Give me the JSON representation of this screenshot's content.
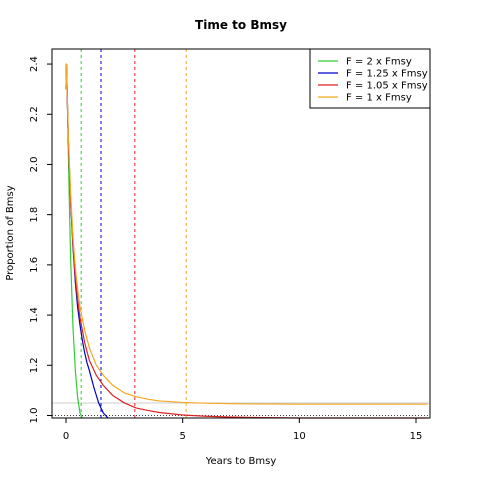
{
  "chart_data": {
    "type": "line",
    "title": "Time to Bmsy",
    "xlabel": "Years to Bmsy",
    "ylabel": "Proportion of Bmsy",
    "xlim": [
      -0.6,
      15.6
    ],
    "ylim": [
      0.99,
      2.46
    ],
    "x_ticks": [
      0,
      5,
      10,
      15
    ],
    "y_ticks": [
      1.0,
      1.2,
      1.4,
      1.6,
      1.8,
      2.0,
      2.2,
      2.4
    ],
    "x_tick_labels": [
      "0",
      "5",
      "10",
      "15"
    ],
    "y_tick_labels": [
      "1.0",
      "1.2",
      "1.4",
      "1.6",
      "1.8",
      "2.0",
      "2.2",
      "2.4"
    ],
    "legend_position": "top-right",
    "reference_lines": {
      "y_dotted": 1.0,
      "y_solid_light": 1.05
    },
    "series": [
      {
        "name": "F = 2 x Fmsy",
        "color": "#33cc33",
        "vline_x": 0.65,
        "x": [
          0,
          0.02,
          0.05,
          0.1,
          0.15,
          0.2,
          0.3,
          0.4,
          0.5,
          0.6,
          0.7
        ],
        "y": [
          2.3,
          2.4,
          2.3,
          2.05,
          1.82,
          1.62,
          1.35,
          1.18,
          1.07,
          1.01,
          0.98
        ]
      },
      {
        "name": "F = 1.25 x Fmsy",
        "color": "#0000cc",
        "vline_x": 1.5,
        "x": [
          0,
          0.02,
          0.05,
          0.1,
          0.2,
          0.3,
          0.4,
          0.5,
          0.6,
          0.7,
          0.8,
          0.9,
          1.0,
          1.2,
          1.4,
          1.6,
          1.8
        ],
        "y": [
          2.3,
          2.4,
          2.28,
          2.1,
          1.85,
          1.67,
          1.53,
          1.43,
          1.36,
          1.3,
          1.25,
          1.21,
          1.18,
          1.11,
          1.05,
          1.01,
          0.985
        ]
      },
      {
        "name": "F = 1.05 x Fmsy",
        "color": "#dd2222",
        "vline_x": 2.95,
        "x": [
          0,
          0.02,
          0.05,
          0.1,
          0.2,
          0.3,
          0.4,
          0.5,
          0.6,
          0.8,
          1.0,
          1.3,
          1.6,
          2.0,
          2.5,
          3.0,
          3.5,
          4.0,
          5.0,
          6.0,
          7.0,
          8.0,
          9.0,
          10.0,
          12.0,
          15.5
        ],
        "y": [
          2.3,
          2.4,
          2.28,
          2.1,
          1.85,
          1.68,
          1.55,
          1.46,
          1.39,
          1.29,
          1.22,
          1.16,
          1.12,
          1.08,
          1.05,
          1.03,
          1.02,
          1.012,
          1.002,
          0.997,
          0.994,
          0.992,
          0.991,
          0.99,
          0.99,
          0.989
        ]
      },
      {
        "name": "F = 1 x Fmsy",
        "color": "#f5a623",
        "vline_x": 5.15,
        "x": [
          0,
          0.02,
          0.05,
          0.1,
          0.2,
          0.3,
          0.4,
          0.5,
          0.6,
          0.8,
          1.0,
          1.3,
          1.6,
          2.0,
          2.5,
          3.0,
          3.5,
          4.0,
          5.0,
          6.0,
          7.0,
          8.0,
          10.0,
          12.0,
          15.5
        ],
        "y": [
          2.3,
          2.4,
          2.29,
          2.12,
          1.88,
          1.71,
          1.59,
          1.5,
          1.43,
          1.34,
          1.27,
          1.2,
          1.16,
          1.12,
          1.09,
          1.075,
          1.065,
          1.058,
          1.052,
          1.049,
          1.047,
          1.046,
          1.045,
          1.045,
          1.045
        ]
      }
    ]
  }
}
